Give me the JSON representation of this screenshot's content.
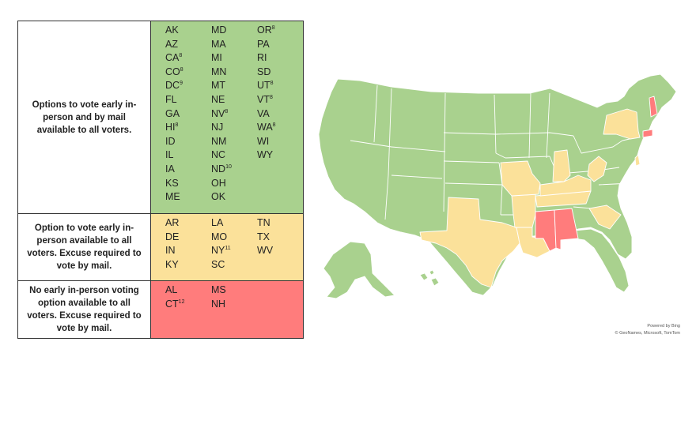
{
  "rows": [
    {
      "description": "Options to vote early in-person and by mail available to all voters.",
      "columns": [
        [
          [
            "AK",
            ""
          ],
          [
            "AZ",
            ""
          ],
          [
            "CA",
            "8"
          ],
          [
            "CO",
            "8"
          ],
          [
            "DC",
            "9"
          ],
          [
            "FL",
            ""
          ],
          [
            "GA",
            ""
          ],
          [
            "HI",
            "8"
          ],
          [
            "ID",
            ""
          ],
          [
            "IL",
            ""
          ],
          [
            "IA",
            ""
          ],
          [
            "KS",
            ""
          ],
          [
            "ME",
            ""
          ]
        ],
        [
          [
            "MD",
            ""
          ],
          [
            "MA",
            ""
          ],
          [
            "MI",
            ""
          ],
          [
            "MN",
            ""
          ],
          [
            "MT",
            ""
          ],
          [
            "NE",
            ""
          ],
          [
            "NV",
            "8"
          ],
          [
            "NJ",
            ""
          ],
          [
            "NM",
            ""
          ],
          [
            "NC",
            ""
          ],
          [
            "ND",
            "10"
          ],
          [
            "OH",
            ""
          ],
          [
            "OK",
            ""
          ]
        ],
        [
          [
            "OR",
            "8"
          ],
          [
            "PA",
            ""
          ],
          [
            "RI",
            ""
          ],
          [
            "SD",
            ""
          ],
          [
            "UT",
            "8"
          ],
          [
            "VT",
            "8"
          ],
          [
            "VA",
            ""
          ],
          [
            "WA",
            "8"
          ],
          [
            "WI",
            ""
          ],
          [
            "WY",
            ""
          ]
        ]
      ]
    },
    {
      "description": "Option to vote early in-person available to all voters. Excuse required to vote by mail.",
      "columns": [
        [
          [
            "AR",
            ""
          ],
          [
            "DE",
            ""
          ],
          [
            "IN",
            ""
          ],
          [
            "KY",
            ""
          ]
        ],
        [
          [
            "LA",
            ""
          ],
          [
            "MO",
            ""
          ],
          [
            "NY",
            "11"
          ],
          [
            "SC",
            ""
          ]
        ],
        [
          [
            "TN",
            ""
          ],
          [
            "TX",
            ""
          ],
          [
            "WV",
            ""
          ]
        ]
      ]
    },
    {
      "description": "No early in-person voting option available to all voters. Excuse required to vote by mail.",
      "columns": [
        [
          [
            "AL",
            ""
          ],
          [
            "CT",
            "12"
          ]
        ],
        [
          [
            "MS",
            ""
          ],
          [
            "NH",
            ""
          ]
        ],
        []
      ]
    }
  ],
  "colors": {
    "green": "#a9d18e",
    "yellow": "#fbe19a",
    "red": "#ff7c7c",
    "water": "#ffffff",
    "border": "#ffffff"
  },
  "map": {
    "credit_line1": "Powered by Bing",
    "credit_line2": "© GeoNames, Microsoft, TomTom"
  }
}
